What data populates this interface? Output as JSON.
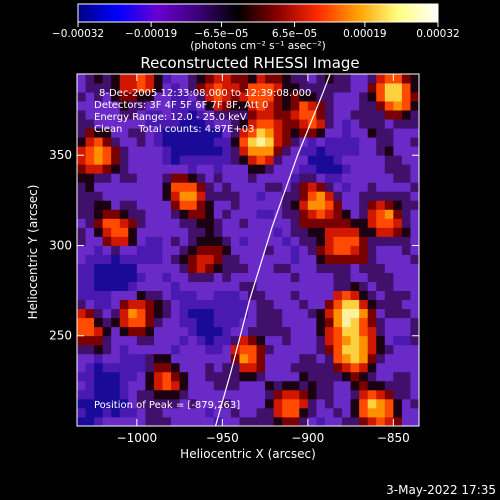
{
  "chart_data": {
    "type": "heatmap",
    "title": "Reconstructed RHESSI Image",
    "xlabel": "Heliocentric X (arcsec)",
    "ylabel": "Heliocentric Y (arcsec)",
    "xlim": [
      -1035,
      -835
    ],
    "ylim": [
      200,
      395
    ],
    "xticks": [
      {
        "value": -1000,
        "label": "−1000"
      },
      {
        "value": -950,
        "label": "−950"
      },
      {
        "value": -900,
        "label": "−900"
      },
      {
        "value": -850,
        "label": "−850"
      }
    ],
    "yticks": [
      {
        "value": 250,
        "label": "250"
      },
      {
        "value": 300,
        "label": "300"
      },
      {
        "value": 350,
        "label": "350"
      }
    ],
    "colorbar": {
      "min": -0.00032,
      "max": 0.00032,
      "ticks": [
        {
          "value": -0.00032,
          "label": "−0.00032"
        },
        {
          "value": -0.00019,
          "label": "−0.00019"
        },
        {
          "value": -6.5e-05,
          "label": "−6.5e−05"
        },
        {
          "value": 6.5e-05,
          "label": "6.5e−05"
        },
        {
          "value": 0.00019,
          "label": "0.00019"
        },
        {
          "value": 0.00032,
          "label": "0.00032"
        }
      ],
      "unit_label": "(photons cm⁻² s⁻¹ asec⁻²)",
      "colors": [
        "#000080",
        "#0000ff",
        "#6a00d0",
        "#3c007a",
        "#000000",
        "#8a0000",
        "#ff2a00",
        "#ffa000",
        "#ffff80",
        "#ffffff"
      ]
    },
    "info_lines": [
      "8-Dec-2005 12:33:08.000 to 12:39:08.000",
      "Detectors: 3F 4F 5F 6F 7F 8F, Att 0",
      "Energy Range: 12.0 - 25.0 keV",
      "Clean     Total counts: 4.87E+03"
    ],
    "peak_label": "Position of Peak = [-879,263]",
    "peak": [
      -879,
      263
    ],
    "limb": [
      [
        -954,
        200
      ],
      [
        -945,
        230
      ],
      [
        -934,
        270
      ],
      [
        -921,
        310
      ],
      [
        -906,
        350
      ],
      [
        -891,
        385
      ],
      [
        -887,
        395
      ]
    ],
    "sources": [
      {
        "x": -877,
        "y": 262,
        "a": 1.0
      },
      {
        "x": -872,
        "y": 242,
        "a": 0.9
      },
      {
        "x": -850,
        "y": 385,
        "a": 0.95
      },
      {
        "x": -928,
        "y": 358,
        "a": 0.9
      },
      {
        "x": -925,
        "y": 385,
        "a": 0.7
      },
      {
        "x": -900,
        "y": 370,
        "a": 0.6
      },
      {
        "x": -895,
        "y": 325,
        "a": 0.75
      },
      {
        "x": -880,
        "y": 300,
        "a": 0.6
      },
      {
        "x": -855,
        "y": 315,
        "a": 0.65
      },
      {
        "x": -860,
        "y": 210,
        "a": 0.75
      },
      {
        "x": -1025,
        "y": 350,
        "a": 0.8
      },
      {
        "x": -1000,
        "y": 390,
        "a": 0.6
      },
      {
        "x": -970,
        "y": 330,
        "a": 0.65
      },
      {
        "x": -1010,
        "y": 308,
        "a": 0.7
      },
      {
        "x": -935,
        "y": 240,
        "a": 0.7
      },
      {
        "x": -1000,
        "y": 262,
        "a": 0.65
      },
      {
        "x": -1030,
        "y": 255,
        "a": 0.55
      },
      {
        "x": -985,
        "y": 225,
        "a": 0.5
      },
      {
        "x": -910,
        "y": 212,
        "a": 0.55
      },
      {
        "x": -960,
        "y": 290,
        "a": 0.45
      },
      {
        "x": -950,
        "y": 385,
        "a": 0.5
      }
    ],
    "negatives": [
      {
        "x": -1010,
        "y": 285,
        "a": 0.8
      },
      {
        "x": -970,
        "y": 360,
        "a": 0.7
      },
      {
        "x": -1020,
        "y": 220,
        "a": 0.7
      },
      {
        "x": -955,
        "y": 255,
        "a": 0.6
      },
      {
        "x": -890,
        "y": 345,
        "a": 0.5
      }
    ]
  },
  "footer": {
    "date": "3-May-2022 17:35"
  }
}
